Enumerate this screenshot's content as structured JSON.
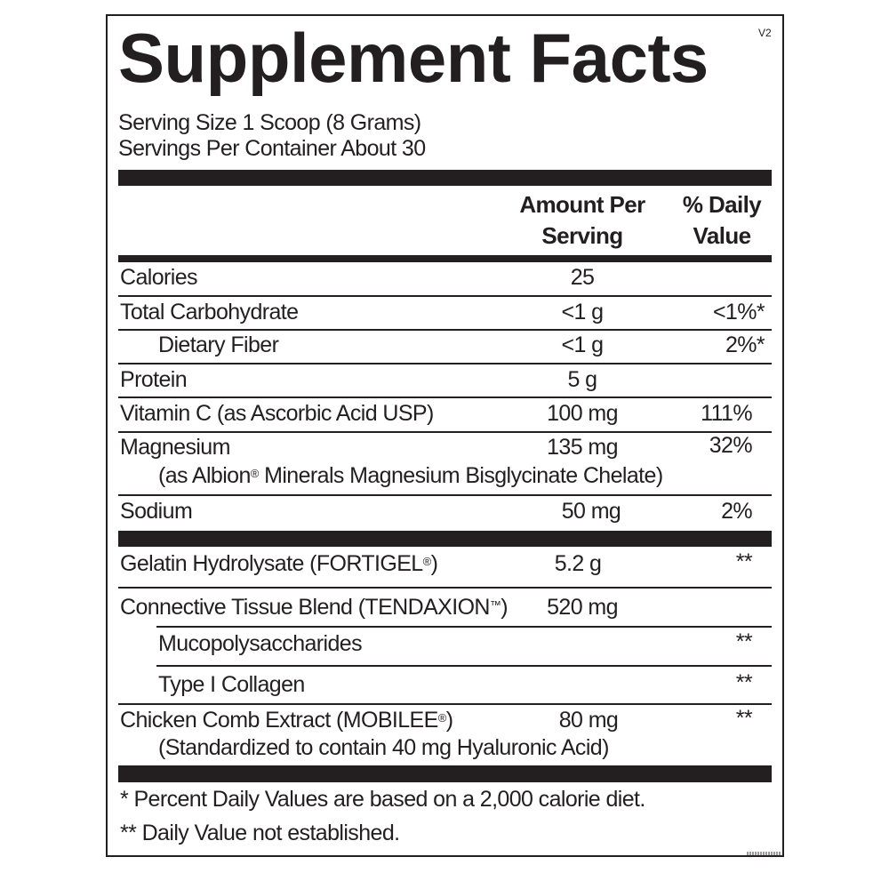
{
  "title": "Supplement Facts",
  "version": "V2",
  "serving_size": "Serving Size 1 Scoop (8 Grams)",
  "servings_per_container": "Servings Per Container About 30",
  "header": {
    "amount_line1": "Amount Per",
    "amount_line2": "Serving",
    "dv_line1": "% Daily",
    "dv_line2": "Value"
  },
  "rows": [
    {
      "name": "Calories",
      "amount": "25",
      "dv": ""
    },
    {
      "name": "Total Carbohydrate",
      "amount": "<1 g",
      "dv": "<1%*"
    },
    {
      "name": "Dietary Fiber",
      "amount": "<1 g",
      "dv": "2%*"
    },
    {
      "name": "Protein",
      "amount": "5 g",
      "dv": ""
    },
    {
      "name": "Vitamin C (as Ascorbic Acid USP)",
      "amount": "100 mg",
      "dv": "111%"
    },
    {
      "name": "Magnesium",
      "sub_pre": "(as Albion",
      "reg": "®",
      "sub_post": " Minerals Magnesium Bisglycinate Chelate)",
      "amount": "135 mg",
      "dv": "32%"
    },
    {
      "name": "Sodium",
      "amount": "50 mg",
      "dv": "2%"
    }
  ],
  "other": [
    {
      "name": "Gelatin Hydrolysate (FORTIGEL",
      "mark": "®",
      "close": ")",
      "amount": "5.2 g",
      "dv": "**"
    },
    {
      "name": "Connective Tissue Blend (TENDAXION",
      "mark": "™",
      "close": ")",
      "amount": "520 mg",
      "dv": ""
    },
    {
      "name": "Mucopolysaccharides",
      "amount": "",
      "dv": "**"
    },
    {
      "name": "Type I Collagen",
      "amount": "",
      "dv": "**"
    },
    {
      "name": "Chicken Comb Extract (MOBILEE",
      "mark": "®",
      "close": ")",
      "sub": "(Standardized to contain 40 mg Hyaluronic Acid)",
      "amount": "80 mg",
      "dv": "**"
    }
  ],
  "footnotes": [
    "* Percent Daily Values are based on a 2,000 calorie diet.",
    "** Daily Value not established."
  ]
}
